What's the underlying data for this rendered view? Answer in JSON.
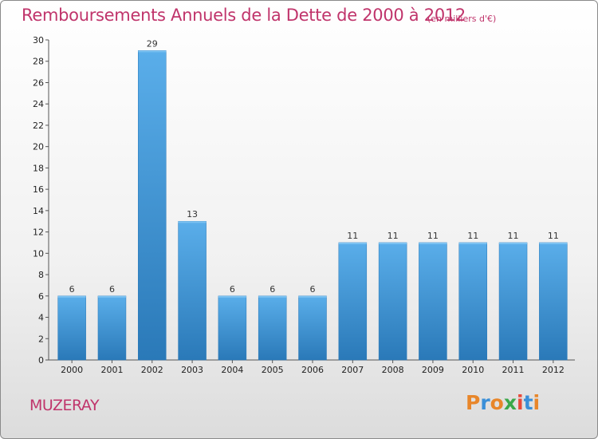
{
  "title": "Remboursements Annuels de la Dette de 2000 à 2012",
  "unit_note": "(en milliers d'€)",
  "place_name": "MUZERAY",
  "logo_text": "Proxiti",
  "colors": {
    "title": "#c0346b",
    "bar_light": "#5aaeea",
    "bar_dark": "#2a79b8",
    "logo_letters": [
      "#e8862a",
      "#3a8fd8",
      "#e8862a",
      "#3aa84a",
      "#e84a3a",
      "#3a8fd8",
      "#e8862a"
    ]
  },
  "chart_data": {
    "type": "bar",
    "title": "Remboursements Annuels de la Dette de 2000 à 2012",
    "categories": [
      "2000",
      "2001",
      "2002",
      "2003",
      "2004",
      "2005",
      "2006",
      "2007",
      "2008",
      "2009",
      "2010",
      "2011",
      "2012"
    ],
    "values": [
      6,
      6,
      29,
      13,
      6,
      6,
      6,
      11,
      11,
      11,
      11,
      11,
      11
    ],
    "data_labels": [
      "6",
      "6",
      "29",
      "13",
      "6",
      "6",
      "6",
      "11",
      "11",
      "11",
      "11",
      "11",
      "11"
    ],
    "ylim": [
      0,
      30
    ],
    "yticks": [
      0,
      2,
      4,
      6,
      8,
      10,
      12,
      14,
      16,
      18,
      20,
      22,
      24,
      26,
      28,
      30
    ],
    "grid": false,
    "xlabel": "",
    "ylabel": ""
  }
}
